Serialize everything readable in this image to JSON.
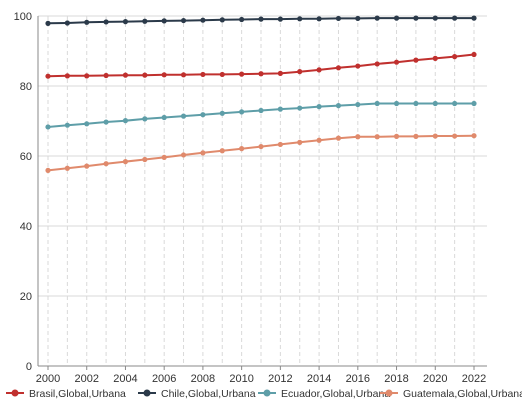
{
  "chart_data": {
    "type": "line",
    "title": "",
    "xlabel": "",
    "ylabel": "",
    "x": [
      2000,
      2001,
      2002,
      2003,
      2004,
      2005,
      2006,
      2007,
      2008,
      2009,
      2010,
      2011,
      2012,
      2013,
      2014,
      2015,
      2016,
      2017,
      2018,
      2019,
      2020,
      2021,
      2022
    ],
    "x_tick_labels": [
      "2000",
      "2002",
      "2004",
      "2006",
      "2008",
      "2010",
      "2012",
      "2014",
      "2016",
      "2018",
      "2020",
      "2022"
    ],
    "y_tick_labels": [
      "0",
      "20",
      "40",
      "60",
      "80",
      "100"
    ],
    "ylim": [
      0,
      100
    ],
    "xlim": [
      2000,
      2022
    ],
    "grid": {
      "horizontal": "solid",
      "vertical": "dashed"
    },
    "legend_position": "bottom",
    "series": [
      {
        "name": "Brasil,Global,Urbana",
        "color": "#c0302e",
        "values": [
          82.8,
          82.9,
          82.9,
          83.0,
          83.1,
          83.1,
          83.2,
          83.2,
          83.3,
          83.3,
          83.4,
          83.5,
          83.6,
          84.1,
          84.6,
          85.2,
          85.7,
          86.3,
          86.8,
          87.4,
          87.9,
          88.4,
          89.0
        ]
      },
      {
        "name": "Chile,Global,Urbana",
        "color": "#2b3a4a",
        "values": [
          97.9,
          98.0,
          98.2,
          98.3,
          98.4,
          98.5,
          98.6,
          98.7,
          98.8,
          98.9,
          99.0,
          99.1,
          99.1,
          99.2,
          99.2,
          99.3,
          99.3,
          99.4,
          99.4,
          99.4,
          99.4,
          99.4,
          99.4
        ]
      },
      {
        "name": "Ecuador,Global,Urbana",
        "color": "#5e9ea8",
        "values": [
          68.3,
          68.8,
          69.2,
          69.7,
          70.1,
          70.6,
          71.0,
          71.4,
          71.8,
          72.2,
          72.6,
          73.0,
          73.4,
          73.7,
          74.1,
          74.4,
          74.7,
          75.0,
          75.0,
          75.0,
          75.0,
          75.0,
          75.0
        ]
      },
      {
        "name": "Guatemala,Global,Urbana",
        "color": "#e08a6c",
        "values": [
          55.9,
          56.5,
          57.1,
          57.8,
          58.4,
          59.0,
          59.6,
          60.3,
          60.9,
          61.5,
          62.1,
          62.7,
          63.3,
          63.9,
          64.5,
          65.1,
          65.5,
          65.5,
          65.6,
          65.6,
          65.7,
          65.7,
          65.8
        ]
      }
    ]
  }
}
